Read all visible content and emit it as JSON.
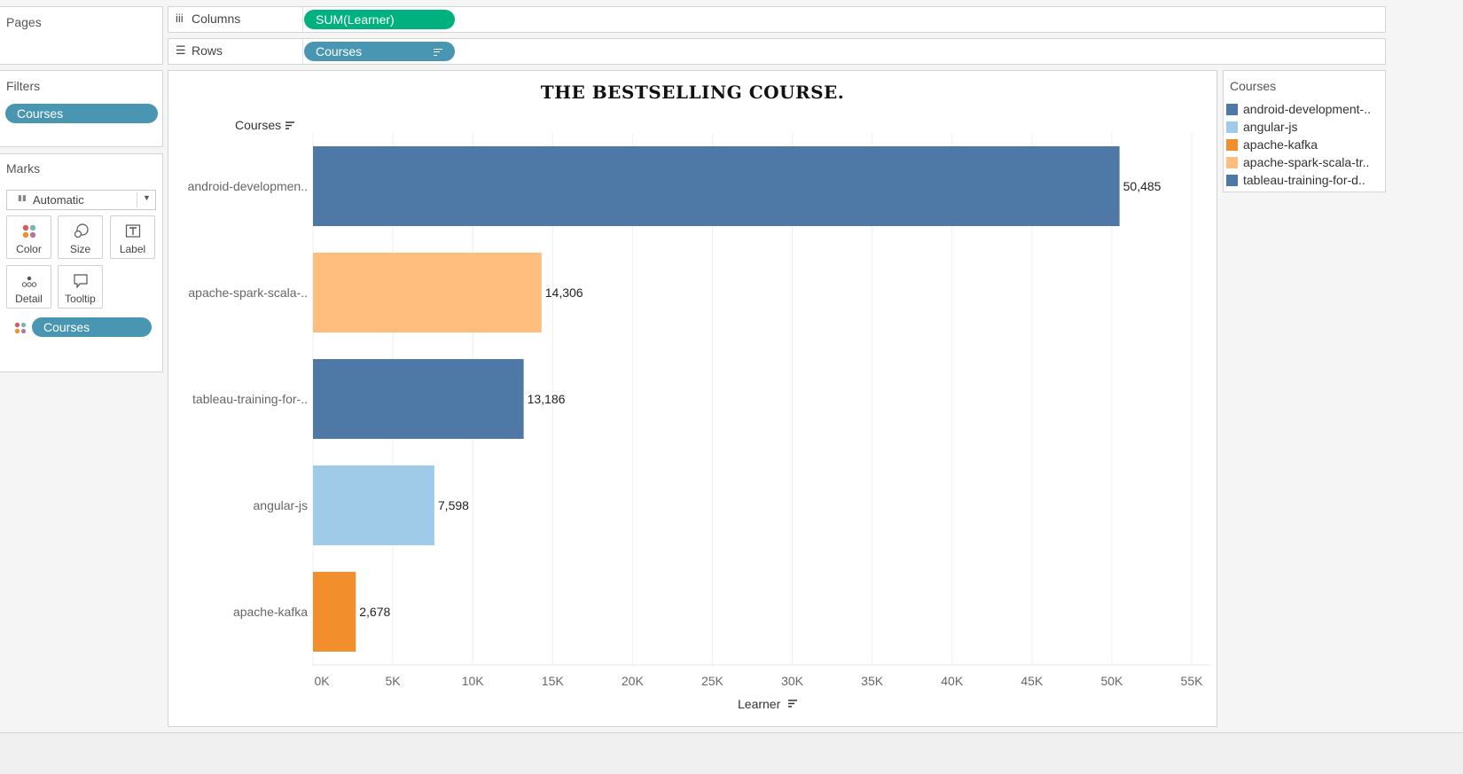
{
  "pages": {
    "title": "Pages"
  },
  "shelves": {
    "columns": {
      "label": "Columns",
      "pill": "SUM(Learner)"
    },
    "rows": {
      "label": "Rows",
      "pill": "Courses"
    }
  },
  "filters": {
    "title": "Filters",
    "pill": "Courses"
  },
  "marks": {
    "title": "Marks",
    "type_value": "Automatic",
    "buttons": [
      "Color",
      "Size",
      "Label",
      "Detail",
      "Tooltip"
    ],
    "color_pill": "Courses"
  },
  "legend": {
    "title": "Courses",
    "items": [
      {
        "label": "android-development-..",
        "color": "#4e79a7"
      },
      {
        "label": "angular-js",
        "color": "#a0cbe8"
      },
      {
        "label": "apache-kafka",
        "color": "#f28e2b"
      },
      {
        "label": "apache-spark-scala-tr..",
        "color": "#ffbe7d"
      },
      {
        "label": "tableau-training-for-d..",
        "color": "#4e79a7"
      }
    ]
  },
  "chart_data": {
    "type": "bar",
    "orientation": "horizontal",
    "title": "THE BESTSELLING COURSE.",
    "row_header": "Courses",
    "xlabel": "Learner",
    "categories": [
      "android-developmen..",
      "apache-spark-scala-..",
      "tableau-training-for-..",
      "angular-js",
      "apache-kafka"
    ],
    "values": [
      50485,
      14306,
      13186,
      7598,
      2678
    ],
    "value_labels": [
      "50,485",
      "14,306",
      "13,186",
      "7,598",
      "2,678"
    ],
    "colors": [
      "#4e79a7",
      "#ffbe7d",
      "#4e79a7",
      "#a0cbe8",
      "#f28e2b"
    ],
    "xlim": [
      0,
      55000
    ],
    "xticks": [
      0,
      5000,
      10000,
      15000,
      20000,
      25000,
      30000,
      35000,
      40000,
      45000,
      50000,
      55000
    ],
    "xtick_labels": [
      "0K",
      "5K",
      "10K",
      "15K",
      "20K",
      "25K",
      "30K",
      "35K",
      "40K",
      "45K",
      "50K",
      "55K"
    ],
    "grid": true
  }
}
